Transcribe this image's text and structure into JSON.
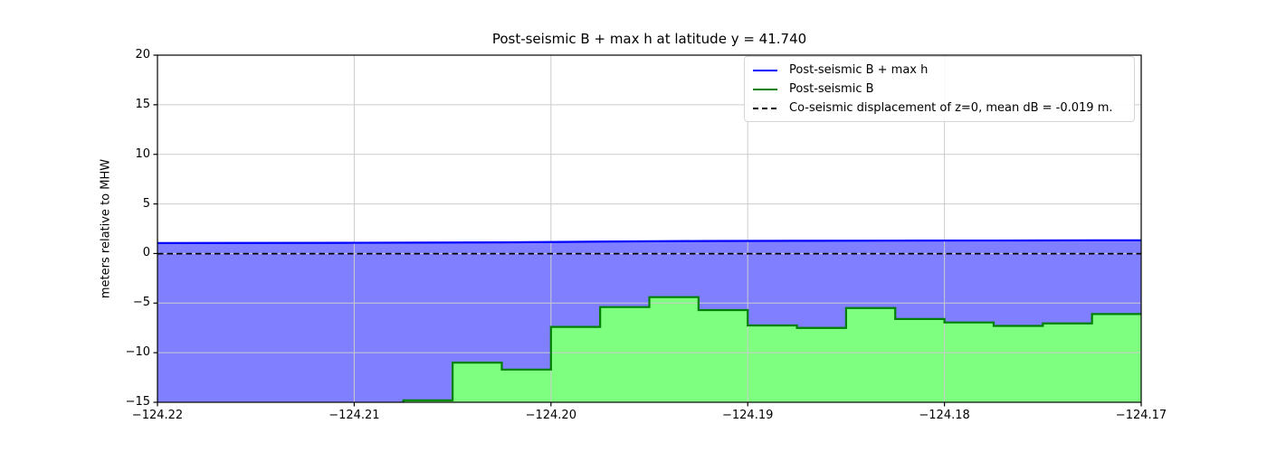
{
  "chart_data": {
    "type": "line",
    "title": "Post-seismic B + max h at latitude y = 41.740",
    "xlabel": "",
    "ylabel": "meters relative to MHW",
    "xlim": [
      -124.22,
      -124.17
    ],
    "ylim": [
      -15,
      20
    ],
    "xticks": [
      -124.22,
      -124.21,
      -124.2,
      -124.19,
      -124.18,
      -124.17
    ],
    "xtick_labels": [
      "−124.22",
      "−124.21",
      "−124.20",
      "−124.19",
      "−124.18",
      "−124.17"
    ],
    "yticks": [
      20,
      15,
      10,
      5,
      0,
      -5,
      -10,
      -15
    ],
    "ytick_labels": [
      "20",
      "15",
      "10",
      "5",
      "0",
      "−5",
      "−10",
      "−15"
    ],
    "grid": true,
    "grid_color": "#cccccc",
    "legend_position": "upper right",
    "legend": [
      {
        "label": "Post-seismic B + max h",
        "color": "#0000ff",
        "style": "solid"
      },
      {
        "label": "Post-seismic B",
        "color": "#008000",
        "style": "solid"
      },
      {
        "label": "Co-seismic displacement of z=0, mean dB = -0.019 m.",
        "color": "#000000",
        "style": "dashed"
      }
    ],
    "series": [
      {
        "name": "Post-seismic B + max h",
        "type": "line",
        "color": "#0000ff",
        "fill": "rgba(0,0,255,0.5)",
        "x": [
          -124.22,
          -124.21,
          -124.2025,
          -124.1975,
          -124.1925,
          -124.1875,
          -124.1825,
          -124.1775,
          -124.1725,
          -124.17
        ],
        "y": [
          1.05,
          1.08,
          1.12,
          1.2,
          1.26,
          1.28,
          1.3,
          1.31,
          1.33,
          1.33
        ]
      },
      {
        "name": "Post-seismic B",
        "type": "step",
        "color": "#008000",
        "fill": "rgba(0,255,0,0.5)",
        "edges": [
          -124.2075,
          -124.205,
          -124.2025,
          -124.2,
          -124.1975,
          -124.195,
          -124.1925,
          -124.19,
          -124.1875,
          -124.185,
          -124.1825,
          -124.18,
          -124.1775,
          -124.175,
          -124.1725,
          -124.17
        ],
        "values": [
          -14.8,
          -11.0,
          -11.7,
          -7.4,
          -5.4,
          -4.4,
          -5.7,
          -7.25,
          -7.5,
          -5.5,
          -6.6,
          -6.95,
          -7.3,
          -7.05,
          -6.1
        ]
      },
      {
        "name": "Co-seismic displacement of z=0",
        "type": "hline",
        "color": "#000000",
        "value": -0.019,
        "dash": "6.5 4"
      }
    ]
  }
}
